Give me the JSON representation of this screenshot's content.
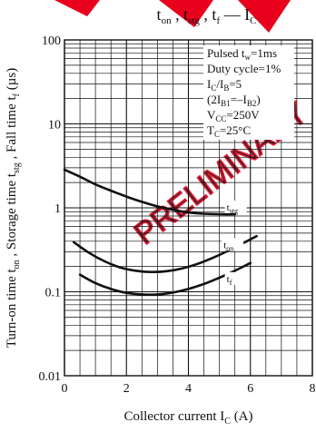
{
  "colors": {
    "watermark": "#e8001c",
    "curve": "#111111",
    "grid": "#111111"
  },
  "watermark": {
    "text": "PRELIMINARY"
  },
  "chart_data": {
    "type": "line",
    "title": {
      "main": "t",
      "parts": [
        {
          "base": "t",
          "sub": "on"
        },
        {
          "sep": " , "
        },
        {
          "base": "t",
          "sub": "stg"
        },
        {
          "sep": " , "
        },
        {
          "base": "t",
          "sub": "f"
        },
        {
          "sep": " — "
        },
        {
          "base": "I",
          "sub": "C"
        }
      ]
    },
    "xlabel": {
      "text": "Collector current  I",
      "sub": "C",
      "unit": "  (A)"
    },
    "ylabel": {
      "text": "Turn-on time t",
      "sub1": "on",
      "mid1": " , Storage time t",
      "sub2": "stg",
      "mid2": " , Fall time t",
      "sub3": "f",
      "unit": "  (µs)"
    },
    "xlim": [
      0,
      8
    ],
    "ylim": [
      0.01,
      100
    ],
    "yscale": "log",
    "x_ticks": [
      "0",
      "2",
      "4",
      "6",
      "8"
    ],
    "y_ticks": [
      "0.01",
      "0.1",
      "1",
      "10",
      "100"
    ],
    "grid": true,
    "conditions": [
      {
        "text": "Pulsed t",
        "sub": "w",
        "after": "=1ms"
      },
      {
        "text": "Duty cycle=1%"
      },
      {
        "text": "I",
        "sub": "C",
        "after": "/I",
        "sub2": "B",
        "after2": "=5"
      },
      {
        "text": "(2I",
        "sub": "B1",
        "after": "=–I",
        "sub2": "B2",
        "after2": ")"
      },
      {
        "text": "V",
        "sub": "CC",
        "after": "=250V"
      },
      {
        "text": "T",
        "sub": "C",
        "after": "=25°C"
      }
    ],
    "series": [
      {
        "name": "t_stg",
        "label": "t",
        "label_sub": "stg",
        "x": [
          0,
          0.5,
          1,
          1.5,
          2,
          2.5,
          3,
          3.5,
          4,
          4.5,
          5,
          5.5
        ],
        "y": [
          2.85,
          2.35,
          1.9,
          1.6,
          1.36,
          1.18,
          1.04,
          0.95,
          0.88,
          0.85,
          0.84,
          0.84
        ]
      },
      {
        "name": "t_on",
        "label": "t",
        "label_sub": "on",
        "x": [
          0.3,
          0.8,
          1.3,
          1.8,
          2.3,
          2.8,
          3.3,
          3.8,
          4.3,
          4.8,
          5.3,
          5.8,
          6.2
        ],
        "y": [
          0.39,
          0.29,
          0.23,
          0.195,
          0.178,
          0.172,
          0.176,
          0.19,
          0.215,
          0.255,
          0.31,
          0.385,
          0.46
        ]
      },
      {
        "name": "t_f",
        "label": "t",
        "label_sub": "f",
        "x": [
          0.5,
          1,
          1.5,
          2,
          2.5,
          3,
          3.5,
          4,
          4.5,
          5,
          5.5,
          6
        ],
        "y": [
          0.16,
          0.127,
          0.108,
          0.097,
          0.093,
          0.093,
          0.098,
          0.108,
          0.124,
          0.147,
          0.178,
          0.22
        ]
      }
    ],
    "curve_label_positions": [
      {
        "series": "t_stg",
        "x": 5.0,
        "y": 0.84
      },
      {
        "series": "t_on",
        "x": 4.9,
        "y": 0.3
      },
      {
        "series": "t_f",
        "x": 5.0,
        "y": 0.118
      }
    ]
  }
}
